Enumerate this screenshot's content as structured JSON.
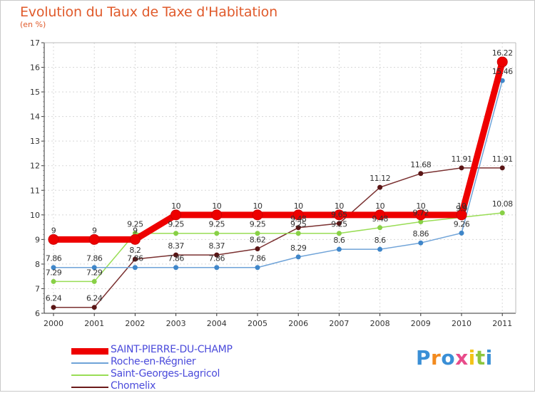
{
  "header": {
    "title": "Evolution du Taux de Taxe d'Habitation",
    "unit": "(en %)"
  },
  "chart_data": {
    "type": "line",
    "title": "Evolution du Taux de Taxe d'Habitation",
    "ylabel": "(en %)",
    "xlabel": "",
    "x": [
      "2000",
      "2001",
      "2002",
      "2003",
      "2004",
      "2005",
      "2006",
      "2007",
      "2008",
      "2009",
      "2010",
      "2011"
    ],
    "ylim": [
      6,
      17
    ],
    "yticks": [
      6,
      7,
      8,
      9,
      10,
      11,
      12,
      13,
      14,
      15,
      16,
      17
    ],
    "grid": true,
    "legend_position": "bottom",
    "series": [
      {
        "name": "Chomelix",
        "color": "#6b1a1a",
        "values": [
          6.24,
          6.24,
          8.2,
          8.37,
          8.37,
          8.62,
          9.48,
          9.65,
          11.12,
          11.68,
          11.91,
          11.91
        ],
        "labels": [
          "6.24",
          "6.24",
          "8.2",
          "8.37",
          "8.37",
          "8.62",
          "9.48",
          "9.65",
          "11.12",
          "11.68",
          "11.91",
          "11.91"
        ]
      },
      {
        "name": "Saint-Georges-Lagricol",
        "color": "#99dd55",
        "values": [
          7.29,
          7.29,
          9.25,
          9.25,
          9.25,
          9.25,
          9.25,
          9.25,
          9.48,
          9.72,
          9.9,
          10.08
        ],
        "labels": [
          "7.29",
          "7.29",
          "9.25",
          "9.25",
          "9.25",
          "9.25",
          "9.25",
          "9.25",
          "9.48",
          "9.72",
          "9.9",
          "10.08"
        ]
      },
      {
        "name": "Roche-en-Régnier",
        "color": "#6fa3d8",
        "values": [
          7.86,
          7.86,
          7.86,
          7.86,
          7.86,
          7.86,
          8.29,
          8.6,
          8.6,
          8.86,
          9.26,
          15.46
        ],
        "labels": [
          "7.86",
          "7.86",
          "7.86",
          "7.86",
          "7.86",
          "7.86",
          "8.29",
          "8.6",
          "8.6",
          "8.86",
          "9.26",
          "15.46"
        ]
      },
      {
        "name": "SAINT-PIERRE-DU-CHAMP",
        "color": "#ee0000",
        "values": [
          9,
          9,
          9,
          10,
          10,
          10,
          10,
          10,
          10,
          10,
          10,
          16.22
        ],
        "labels": [
          "9",
          "9",
          "9",
          "10",
          "10",
          "10",
          "10",
          "10",
          "10",
          "10",
          "10",
          "16.22"
        ]
      }
    ]
  },
  "legend": {
    "items": [
      {
        "label": "SAINT-PIERRE-DU-CHAMP",
        "color": "#ee0000"
      },
      {
        "label": "Roche-en-Régnier",
        "color": "#6fa3d8"
      },
      {
        "label": "Saint-Georges-Lagricol",
        "color": "#99dd55"
      },
      {
        "label": "Chomelix",
        "color": "#6b1a1a"
      }
    ]
  },
  "logo": {
    "letters": [
      "P",
      "r",
      "o",
      "x",
      "i",
      "t",
      "i"
    ],
    "colors": [
      "#3a8fd6",
      "#f28a1e",
      "#3a8fd6",
      "#e84b8a",
      "#f2c318",
      "#8cc63e",
      "#3a8fd6"
    ]
  }
}
